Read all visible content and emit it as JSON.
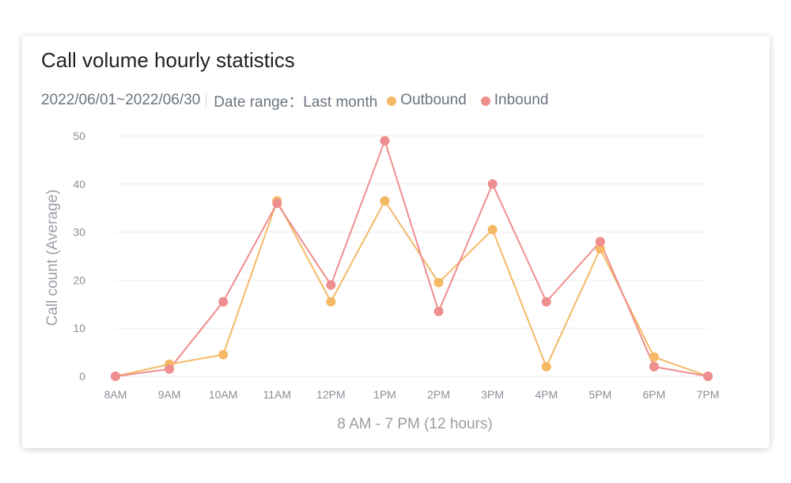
{
  "card": {
    "title": "Call volume hourly statistics",
    "date_text": "2022/06/01~2022/06/30",
    "range_text": "Date range：Last month"
  },
  "colors": {
    "outbound": "#f5b965",
    "inbound": "#ef8e8e",
    "grid": "#ececec"
  },
  "chart_data": {
    "type": "line",
    "title": "Call volume hourly statistics",
    "xlabel": "8 AM - 7 PM (12 hours)",
    "ylabel": "Call count (Average)",
    "categories": [
      "8AM",
      "9AM",
      "10AM",
      "11AM",
      "12PM",
      "1PM",
      "2PM",
      "3PM",
      "4PM",
      "5PM",
      "6PM",
      "7PM"
    ],
    "yticks": [
      0,
      10,
      20,
      30,
      40,
      50
    ],
    "ylim": [
      0,
      50
    ],
    "grid": true,
    "legend_position": "top-left",
    "series": [
      {
        "name": "Outbound",
        "color": "#f5b965",
        "values": [
          0,
          2.5,
          4.5,
          36.5,
          15.5,
          36.5,
          19.5,
          30.5,
          2,
          26.5,
          4,
          0
        ]
      },
      {
        "name": "Inbound",
        "color": "#ef8e8e",
        "values": [
          0,
          1.5,
          15.5,
          36,
          19,
          49,
          13.5,
          40,
          15.5,
          28,
          2,
          0
        ]
      }
    ]
  }
}
